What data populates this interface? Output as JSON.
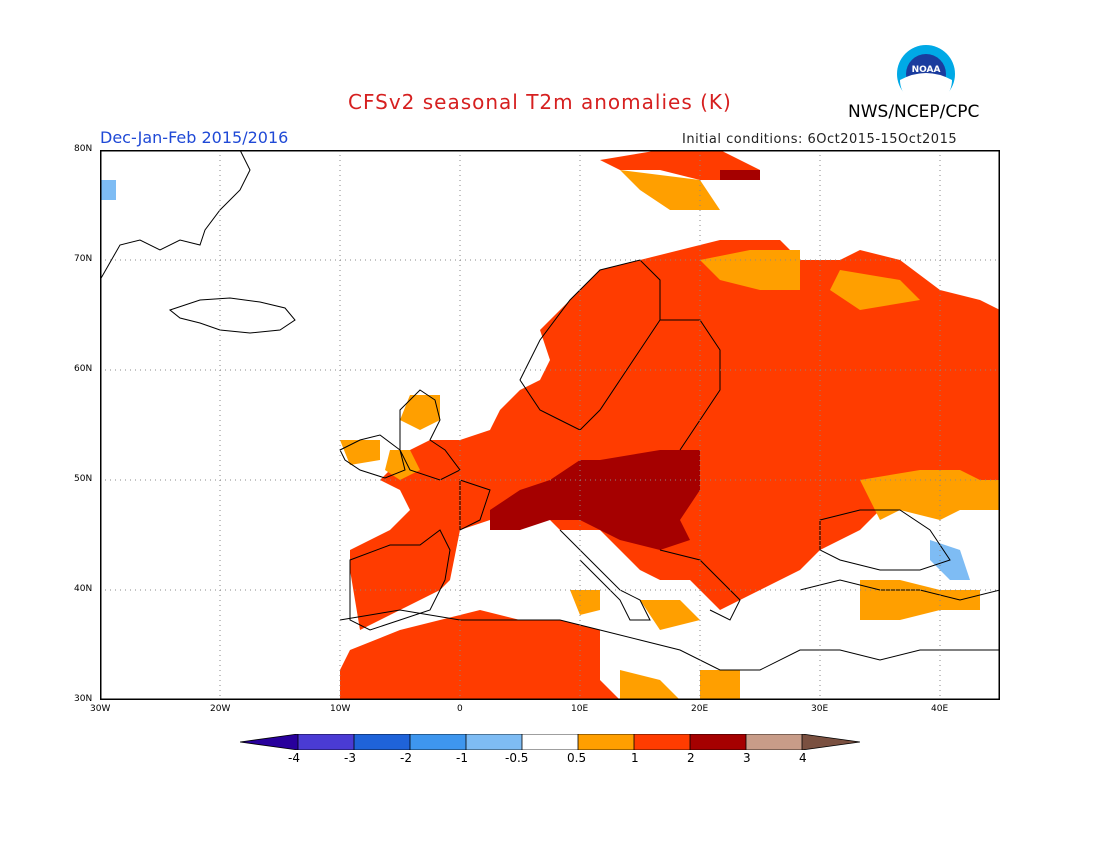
{
  "title": "CFSv2 seasonal T2m anomalies (K)",
  "period": "Dec-Jan-Feb 2015/2016",
  "initial_conditions": "Initial conditions: 6Oct2015-15Oct2015",
  "agency": "NWS/NCEP/CPC",
  "logo_text": "NOAA",
  "map": {
    "lon_range": [
      -30,
      45
    ],
    "lat_range": [
      30,
      80
    ],
    "lat_ticks": [
      "80N",
      "70N",
      "60N",
      "50N",
      "40N",
      "30N"
    ],
    "lon_ticks": [
      "30W",
      "20W",
      "10W",
      "0",
      "10E",
      "20E",
      "30E",
      "40E"
    ],
    "grid": true
  },
  "colorbar": {
    "labels": [
      "-4",
      "-3",
      "-2",
      "-1",
      "-0.5",
      "0.5",
      "1",
      "2",
      "3",
      "4"
    ],
    "colors": [
      "#28009c",
      "#4a3bd4",
      "#1f63d9",
      "#3e96ee",
      "#7ebcf4",
      "#ffffff",
      "#ff9f00",
      "#ff3c00",
      "#a50000",
      "#c89c88",
      "#7a5040"
    ]
  }
}
